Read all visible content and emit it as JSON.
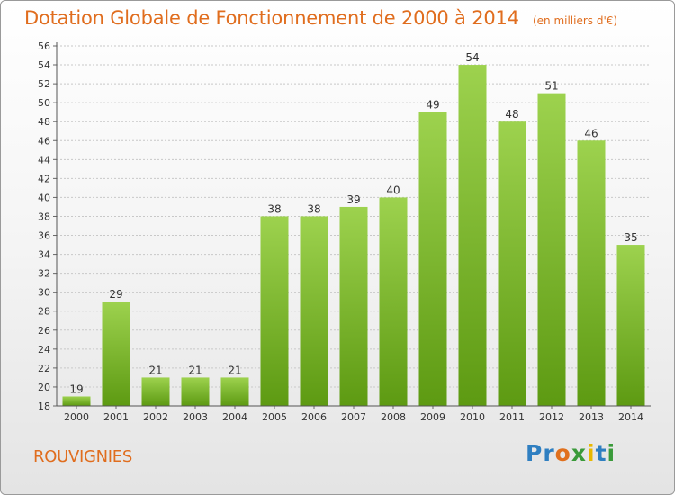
{
  "chart_data": {
    "type": "bar",
    "title": "Dotation Globale de Fonctionnement de 2000 à 2014",
    "subtitle": "(en milliers d'€)",
    "categories": [
      "2000",
      "2001",
      "2002",
      "2003",
      "2004",
      "2005",
      "2006",
      "2007",
      "2008",
      "2009",
      "2010",
      "2011",
      "2012",
      "2013",
      "2014"
    ],
    "values": [
      19,
      29,
      21,
      21,
      21,
      38,
      38,
      39,
      40,
      49,
      54,
      48,
      51,
      46,
      35
    ],
    "ylim": [
      18,
      56
    ],
    "yticks": [
      18,
      20,
      22,
      24,
      26,
      28,
      30,
      32,
      34,
      36,
      38,
      40,
      42,
      44,
      46,
      48,
      50,
      52,
      54,
      56
    ],
    "grid": true,
    "bar_color_top": "#9dd24e",
    "bar_color_bottom": "#5d9a12"
  },
  "footer": {
    "commune": "ROUVIGNIES",
    "logo_letters": [
      "P",
      "r",
      "o",
      "x",
      "i",
      "t",
      "i"
    ],
    "logo_colors": [
      "#2f7fc1",
      "#2f7fc1",
      "#e0701d",
      "#3a9a3a",
      "#e8b800",
      "#2f7fc1",
      "#3a9a3a"
    ]
  }
}
